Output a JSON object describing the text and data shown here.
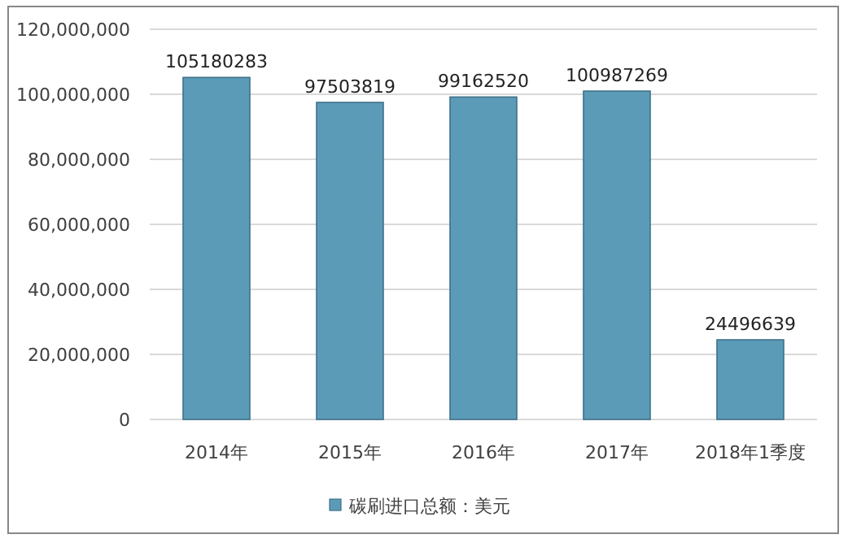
{
  "chart_data": {
    "type": "bar",
    "categories": [
      "2014年",
      "2015年",
      "2016年",
      "2017年",
      "2018年1季度"
    ],
    "series": [
      {
        "name": "碳刷进口总额：美元",
        "color": "#5b9bb8",
        "values": [
          105180283,
          97503819,
          99162520,
          100987269,
          24496639
        ]
      }
    ],
    "ylim": [
      0,
      120000000
    ],
    "yticks": [
      0,
      {
        "value": 20000000,
        "label": "20,000,000"
      },
      {
        "value": 40000000,
        "label": "40,000,000"
      },
      {
        "value": 60000000,
        "label": "60,000,000"
      },
      {
        "value": 80000000,
        "label": "80,000,000"
      },
      {
        "value": 100000000,
        "label": "100,000,000"
      },
      {
        "value": 120000000,
        "label": "120,000,000"
      }
    ],
    "grid": "y",
    "legend": "bottom",
    "data_labels": true
  }
}
